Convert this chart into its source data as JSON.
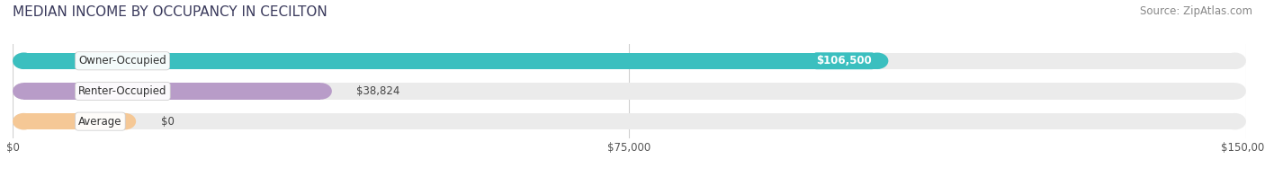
{
  "title": "MEDIAN INCOME BY OCCUPANCY IN CECILTON",
  "source": "Source: ZipAtlas.com",
  "categories": [
    "Owner-Occupied",
    "Renter-Occupied",
    "Average"
  ],
  "values": [
    106500,
    38824,
    0
  ],
  "labels": [
    "$106,500",
    "$38,824",
    "$0"
  ],
  "label_inside": [
    true,
    false,
    false
  ],
  "bar_colors": [
    "#3bbfbf",
    "#b89cc8",
    "#f5c896"
  ],
  "xlim": [
    0,
    150000
  ],
  "xticks": [
    0,
    75000,
    150000
  ],
  "xticklabels": [
    "$0",
    "$75,000",
    "$150,000"
  ],
  "background_color": "#ffffff",
  "bar_bg_color": "#ebebeb",
  "bar_bg_edge_color": "#d8d8d8",
  "title_fontsize": 11,
  "source_fontsize": 8.5,
  "label_fontsize": 8.5,
  "cat_fontsize": 8.5,
  "tick_fontsize": 8.5,
  "bar_height": 0.55,
  "fig_width": 14.06,
  "fig_height": 1.97,
  "avg_small_val": 15000,
  "grid_color": "#d0d0d0"
}
